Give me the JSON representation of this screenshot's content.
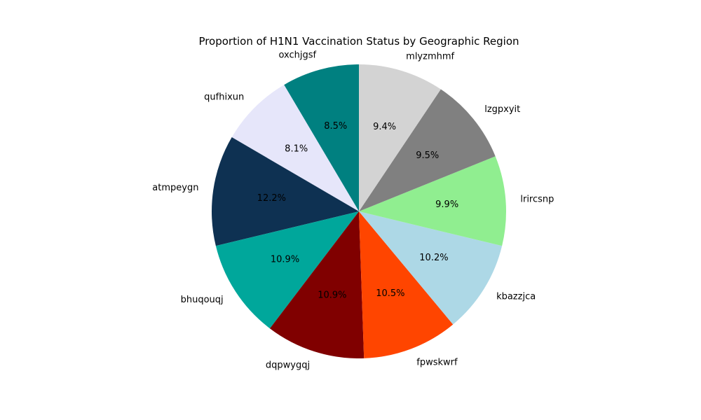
{
  "chart_data": {
    "type": "pie",
    "title": "Proportion of H1N1 Vaccination Status by Geographic Region",
    "autopct_format": "{:.1f}%",
    "start_angle_deg": 90,
    "direction": "counterclockwise",
    "slices": [
      {
        "label": "oxchjgsf",
        "value": 8.5,
        "pct_label": "8.5%",
        "color": "#008080"
      },
      {
        "label": "qufhixun",
        "value": 8.1,
        "pct_label": "8.1%",
        "color": "#E6E6FA"
      },
      {
        "label": "atmpeygn",
        "value": 12.2,
        "pct_label": "12.2%",
        "color": "#0E3152"
      },
      {
        "label": "bhuqouqj",
        "value": 10.9,
        "pct_label": "10.9%",
        "color": "#00A79B"
      },
      {
        "label": "dqpwygqj",
        "value": 10.9,
        "pct_label": "10.9%",
        "color": "#800000"
      },
      {
        "label": "fpwskwrf",
        "value": 10.5,
        "pct_label": "10.5%",
        "color": "#FF4500"
      },
      {
        "label": "kbazzjca",
        "value": 10.2,
        "pct_label": "10.2%",
        "color": "#ADD8E6"
      },
      {
        "label": "lrircsnp",
        "value": 9.9,
        "pct_label": "9.9%",
        "color": "#90EE90"
      },
      {
        "label": "lzgpxyit",
        "value": 9.5,
        "pct_label": "9.5%",
        "color": "#808080"
      },
      {
        "label": "mlyzmhmf",
        "value": 9.4,
        "pct_label": "9.4%",
        "color": "#D3D3D3"
      }
    ]
  }
}
